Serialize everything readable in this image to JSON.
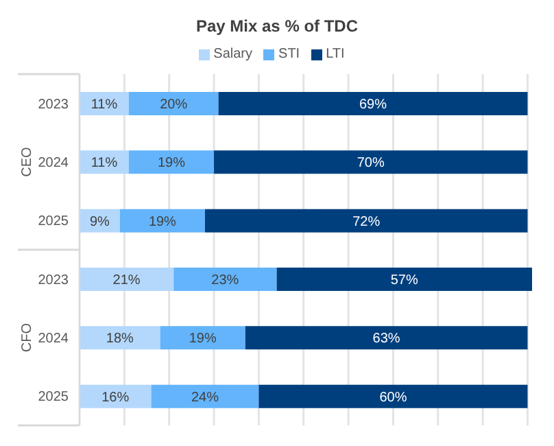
{
  "chart_data": {
    "type": "bar",
    "orientation": "horizontal",
    "stacked": true,
    "title": "Pay Mix as % of TDC",
    "categories": [
      "2023",
      "2024",
      "2025",
      "2023",
      "2024",
      "2025"
    ],
    "annotations": [
      "CEO",
      "CFO"
    ],
    "series": [
      {
        "name": "Salary",
        "color": "#b4d8fc",
        "values": [
          11,
          11,
          9,
          21,
          18,
          16
        ],
        "value_labels": [
          "11%",
          "11%",
          "9%",
          "21%",
          "18%",
          "16%"
        ]
      },
      {
        "name": "STI",
        "color": "#63b4fb",
        "values": [
          20,
          19,
          19,
          23,
          19,
          24
        ],
        "value_labels": [
          "20%",
          "19%",
          "19%",
          "23%",
          "19%",
          "24%"
        ]
      },
      {
        "name": "LTI",
        "color": "#003f7e",
        "values": [
          69,
          70,
          72,
          57,
          63,
          60
        ],
        "value_labels": [
          "69%",
          "70%",
          "72%",
          "57%",
          "63%",
          "60%"
        ]
      }
    ],
    "xlim": [
      0,
      101
    ],
    "xticks": [
      {
        "value": 0,
        "label": null
      },
      {
        "value": 10,
        "label": null
      },
      {
        "value": 20,
        "label": null
      },
      {
        "value": 30,
        "label": null
      },
      {
        "value": 40,
        "label": null
      },
      {
        "value": 50,
        "label": null
      },
      {
        "value": 60,
        "label": null
      },
      {
        "value": 70,
        "label": null
      },
      {
        "value": 80,
        "label": null
      },
      {
        "value": 90,
        "label": null
      },
      {
        "value": 100,
        "label": null
      }
    ],
    "tick_labels": "y",
    "grid": "x",
    "legend": "top"
  }
}
